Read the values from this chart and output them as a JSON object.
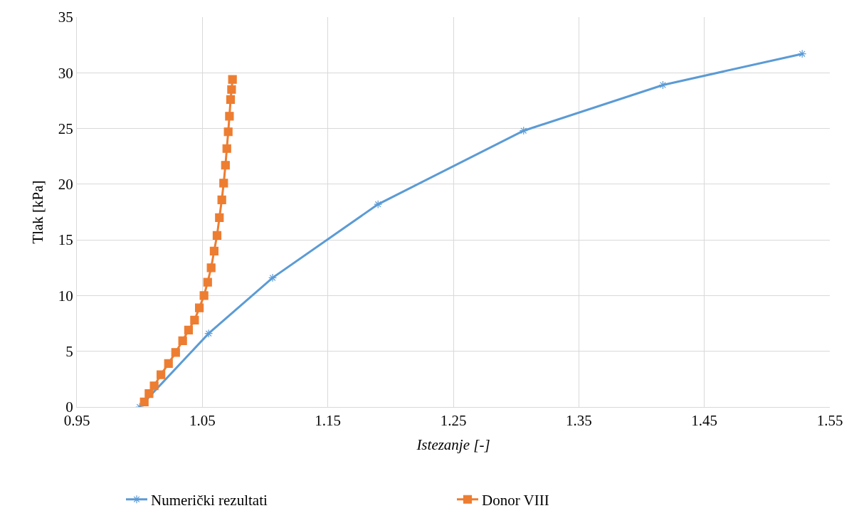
{
  "chart_data": {
    "type": "line",
    "xlabel": "Istezanje [-]",
    "ylabel": "Tlak [kPa]",
    "xlim": [
      0.95,
      1.55
    ],
    "xticks": [
      {
        "value": 0.95,
        "label": "0.95"
      },
      {
        "value": 1.05,
        "label": "1.05"
      },
      {
        "value": 1.15,
        "label": "1.15"
      },
      {
        "value": 1.25,
        "label": "1.25"
      },
      {
        "value": 1.35,
        "label": "1.35"
      },
      {
        "value": 1.45,
        "label": "1.45"
      },
      {
        "value": 1.55,
        "label": "1.55"
      }
    ],
    "ylim": [
      0,
      35
    ],
    "yticks": [
      0,
      5,
      10,
      15,
      20,
      25,
      30,
      35
    ],
    "grid": true,
    "legend": "bottom",
    "series": [
      {
        "name": "Numerički rezultati",
        "color": "#5b9bd5",
        "marker": "cross",
        "x": [
          1.0,
          1.055,
          1.106,
          1.19,
          1.306,
          1.417,
          1.528
        ],
        "values": [
          0,
          6.6,
          11.6,
          18.2,
          24.8,
          28.9,
          31.7
        ]
      },
      {
        "name": "Donor VIII",
        "color": "#ed7d31",
        "marker": "square",
        "x": [
          1.0037,
          1.0075,
          1.0116,
          1.017,
          1.023,
          1.0287,
          1.0343,
          1.039,
          1.0438,
          1.0476,
          1.0513,
          1.0542,
          1.057,
          1.0594,
          1.0617,
          1.0636,
          1.0655,
          1.067,
          1.0684,
          1.0695,
          1.0706,
          1.0716,
          1.0725,
          1.0733,
          1.074
        ],
        "values": [
          0.45,
          1.2,
          1.9,
          2.9,
          3.9,
          4.9,
          5.95,
          6.9,
          7.8,
          8.9,
          10.0,
          11.2,
          12.5,
          14.0,
          15.4,
          17.0,
          18.6,
          20.1,
          21.7,
          23.2,
          24.7,
          26.1,
          27.6,
          28.5,
          29.4
        ]
      }
    ]
  }
}
